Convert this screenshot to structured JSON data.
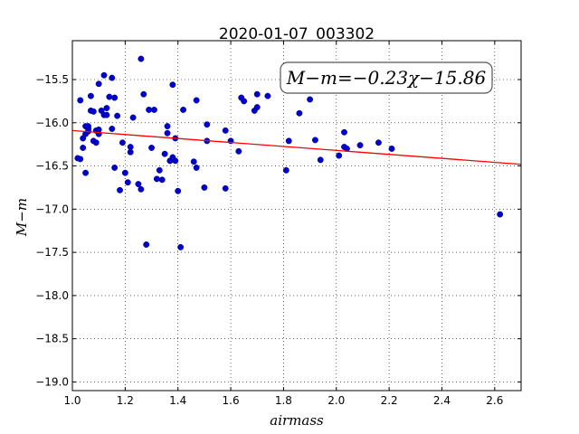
{
  "chart_data": {
    "type": "scatter",
    "title": "2020-01-07_003302",
    "xlabel": "airmass",
    "ylabel": "M−m",
    "annotation": "M−m=−0.23χ−15.86",
    "fit": {
      "slope": -0.23,
      "intercept": -15.86,
      "color": "#ff0000"
    },
    "point_color": "#0000cc",
    "xlim": [
      1.0,
      2.7
    ],
    "ylim": [
      -19.1,
      -15.05
    ],
    "y_inverted": true,
    "grid": true,
    "xticks": [
      "1.0",
      "1.2",
      "1.4",
      "1.6",
      "1.8",
      "2.0",
      "2.2",
      "2.4",
      "2.6"
    ],
    "yticks": [
      "−15.5",
      "−16.0",
      "−16.5",
      "−17.0",
      "−17.5",
      "−18.0",
      "−18.5",
      "−19.0"
    ],
    "x": [
      1.02,
      1.03,
      1.04,
      1.04,
      1.05,
      1.05,
      1.06,
      1.06,
      1.07,
      1.07,
      1.08,
      1.08,
      1.09,
      1.09,
      1.1,
      1.1,
      1.11,
      1.12,
      1.12,
      1.13,
      1.13,
      1.14,
      1.15,
      1.15,
      1.16,
      1.16,
      1.17,
      1.18,
      1.19,
      1.2,
      1.21,
      1.22,
      1.22,
      1.23,
      1.25,
      1.26,
      1.26,
      1.27,
      1.28,
      1.29,
      1.3,
      1.31,
      1.32,
      1.33,
      1.34,
      1.35,
      1.36,
      1.36,
      1.37,
      1.37,
      1.38,
      1.38,
      1.39,
      1.39,
      1.4,
      1.41,
      1.42,
      1.46,
      1.47,
      1.47,
      1.5,
      1.51,
      1.51,
      1.58,
      1.58,
      1.6,
      1.63,
      1.64,
      1.65,
      1.69,
      1.7,
      1.7,
      1.74,
      1.81,
      1.82,
      1.86,
      1.9,
      1.92,
      1.94,
      2.01,
      2.03,
      2.03,
      2.04,
      2.09,
      2.16,
      2.21,
      2.62,
      1.03,
      1.05,
      1.1,
      1.06
    ],
    "y": [
      -16.41,
      -16.42,
      -16.18,
      -16.29,
      -16.58,
      -16.13,
      -16.04,
      -16.1,
      -15.69,
      -15.86,
      -16.21,
      -15.87,
      -16.23,
      -16.09,
      -15.55,
      -16.13,
      -15.86,
      -15.45,
      -15.91,
      -15.83,
      -15.91,
      -15.7,
      -15.48,
      -16.07,
      -15.71,
      -16.52,
      -15.92,
      -16.78,
      -16.23,
      -16.58,
      -16.69,
      -16.28,
      -16.34,
      -15.94,
      -16.71,
      -15.26,
      -16.77,
      -15.67,
      -17.41,
      -15.85,
      -16.29,
      -15.85,
      -16.65,
      -16.55,
      -16.66,
      -16.36,
      -16.04,
      -16.12,
      -16.44,
      -16.44,
      -15.56,
      -16.4,
      -16.18,
      -16.44,
      -16.79,
      -17.44,
      -15.85,
      -16.45,
      -15.74,
      -16.52,
      -16.75,
      -16.02,
      -16.21,
      -16.09,
      -16.76,
      -16.21,
      -16.33,
      -15.71,
      -15.75,
      -15.86,
      -15.82,
      -15.67,
      -15.69,
      -16.55,
      -16.21,
      -15.89,
      -15.73,
      -16.2,
      -16.43,
      -16.38,
      -16.11,
      -16.28,
      -16.3,
      -16.26,
      -16.23,
      -16.3,
      -17.06,
      -15.74,
      -16.04,
      -16.08,
      -16.07
    ]
  }
}
